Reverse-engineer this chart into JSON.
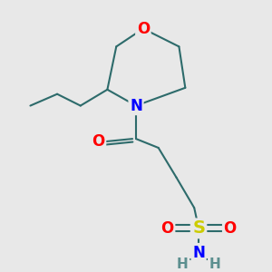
{
  "background_color": "#e8e8e8",
  "line_color": "#2d6b6b",
  "line_width": 1.5,
  "bond_color": "#2d6b6b",
  "colors": {
    "O": "#ff0000",
    "N": "#0000ff",
    "S": "#cccc00",
    "H": "#5c8f8f",
    "C": "#2d6b6b"
  }
}
